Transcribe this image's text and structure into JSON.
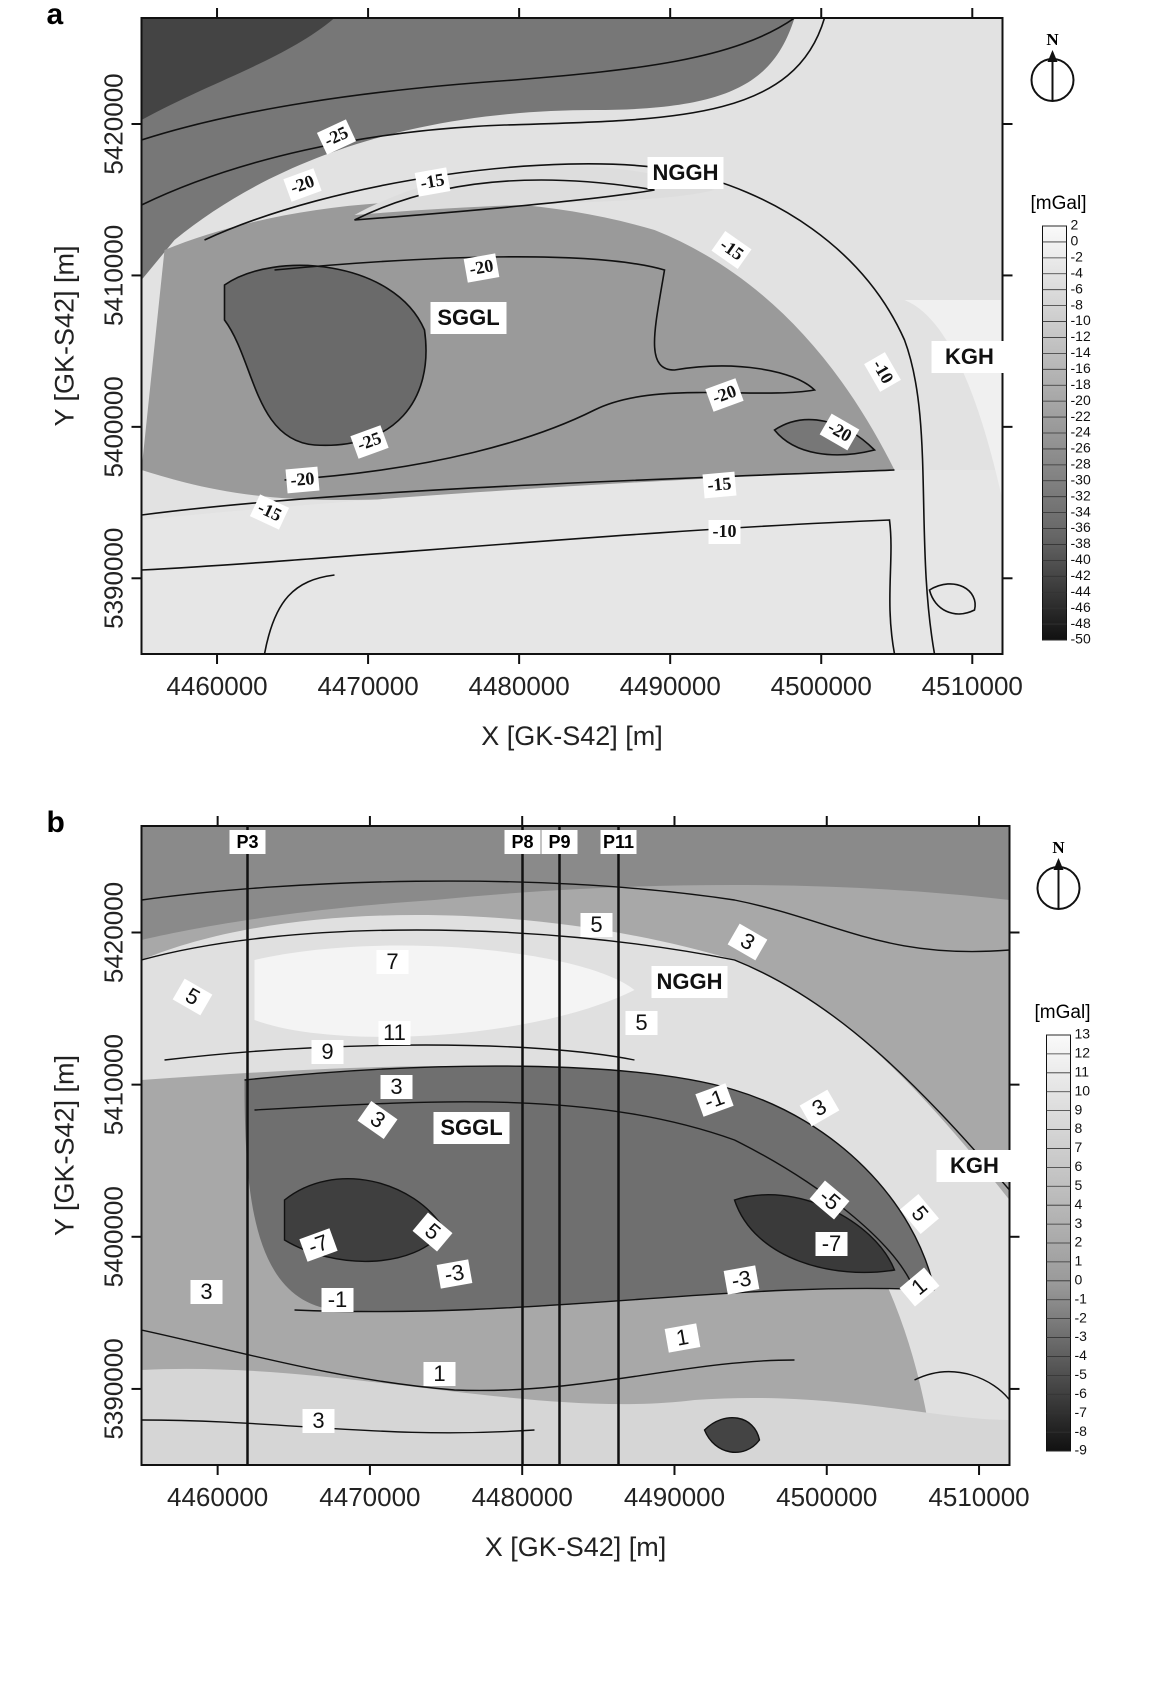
{
  "panels": [
    {
      "label": "a",
      "x_label": "X [GK-S42] [m]",
      "y_label": "Y [GK-S42] [m]",
      "xlim": [
        4455000,
        4512000
      ],
      "ylim": [
        5385000,
        5427000
      ],
      "xticks": [
        4460000,
        4470000,
        4480000,
        4490000,
        4500000,
        4510000
      ],
      "yticks": [
        5390000,
        5400000,
        5410000,
        5420000
      ],
      "contour_labels": [
        -25,
        -20,
        -15,
        -20,
        -15,
        -10,
        -20,
        -20,
        -25,
        -20,
        -15,
        -15,
        -10
      ],
      "regions": [
        "NGGH",
        "SGGL",
        "KGH"
      ],
      "north": "N",
      "colorbar": {
        "unit": "[mGal]",
        "ticks": [
          2,
          0,
          -2,
          -4,
          -6,
          -8,
          -10,
          -12,
          -14,
          -16,
          -18,
          -20,
          -22,
          -24,
          -26,
          -28,
          -30,
          -32,
          -34,
          -36,
          -38,
          -40,
          -42,
          -44,
          -46,
          -48,
          -50
        ]
      }
    },
    {
      "label": "b",
      "x_label": "X [GK-S42] [m]",
      "y_label": "Y [GK-S42] [m]",
      "xlim": [
        4455000,
        4512000
      ],
      "ylim": [
        5385000,
        5427000
      ],
      "xticks": [
        4460000,
        4470000,
        4480000,
        4490000,
        4500000,
        4510000
      ],
      "yticks": [
        5390000,
        5400000,
        5410000,
        5420000
      ],
      "contour_labels": [
        5,
        3,
        7,
        5,
        5,
        11,
        9,
        3,
        3,
        -1,
        3,
        5,
        -5,
        -7,
        -7,
        5,
        -3,
        -3,
        -1,
        1,
        3,
        1,
        1,
        3
      ],
      "regions": [
        "NGGH",
        "SGGL",
        "KGH"
      ],
      "north": "N",
      "profiles": [
        "P3",
        "P8",
        "P9",
        "P11"
      ],
      "colorbar": {
        "unit": "[mGal]",
        "ticks": [
          13,
          12,
          11,
          10,
          9,
          8,
          7,
          6,
          5,
          4,
          3,
          2,
          1,
          0,
          -1,
          -2,
          -3,
          -4,
          -5,
          -6,
          -7,
          -8,
          -9
        ]
      }
    }
  ]
}
